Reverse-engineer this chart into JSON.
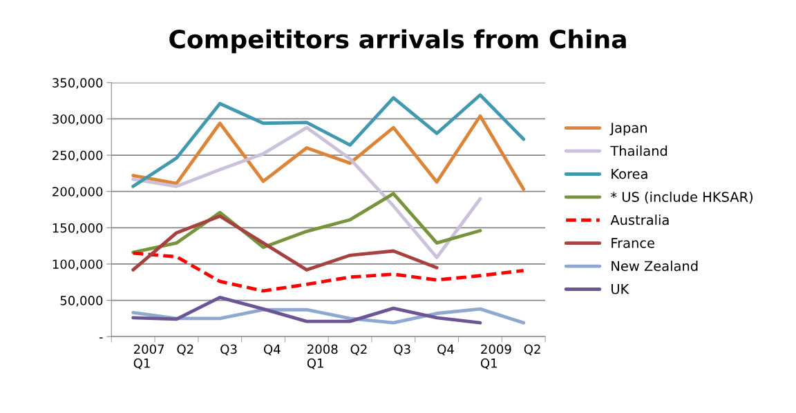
{
  "chart_data": {
    "type": "line",
    "title": "Compeititors arrivals from China",
    "categories": [
      "2007\nQ1",
      "Q2",
      "Q3",
      "Q4",
      "2008\nQ1",
      "Q2",
      "Q3",
      "Q4",
      "2009\nQ1",
      "Q2"
    ],
    "series": [
      {
        "name": "Japan",
        "color": "#dc8539",
        "values": [
          222000,
          211000,
          294000,
          214000,
          260000,
          239000,
          288000,
          213000,
          304000,
          203000
        ]
      },
      {
        "name": "Thailand",
        "color": "#ccc1da",
        "values": [
          217000,
          207000,
          230000,
          252000,
          288000,
          245000,
          180000,
          109000,
          190000,
          null
        ]
      },
      {
        "name": "Korea",
        "color": "#4198af",
        "values": [
          207000,
          246000,
          321000,
          294000,
          295000,
          264000,
          329000,
          280000,
          333000,
          272000
        ]
      },
      {
        "name": "* US (include HKSAR)",
        "color": "#77933c",
        "values": [
          116000,
          129000,
          171000,
          123000,
          145000,
          161000,
          197000,
          129000,
          146000,
          null
        ]
      },
      {
        "name": "Australia",
        "color": "#ff0000",
        "line_style": "dashed",
        "values": [
          115000,
          110000,
          76000,
          63000,
          72000,
          82000,
          86000,
          78000,
          84000,
          91000
        ]
      },
      {
        "name": "France",
        "color": "#a5423f",
        "values": [
          92000,
          143000,
          166000,
          129000,
          92000,
          112000,
          118000,
          95000,
          null,
          null
        ]
      },
      {
        "name": "New Zealand",
        "color": "#8ea8d0",
        "values": [
          33000,
          25000,
          25000,
          37000,
          37000,
          25000,
          19000,
          32000,
          38000,
          19000
        ]
      },
      {
        "name": "UK",
        "color": "#6b5594",
        "values": [
          26000,
          24000,
          54000,
          38000,
          21000,
          21000,
          39000,
          26000,
          19000,
          null
        ]
      }
    ],
    "ylim": [
      0,
      350000
    ],
    "yticks": [
      {
        "value": 0,
        "label": "-"
      },
      {
        "value": 50000,
        "label": "50,000"
      },
      {
        "value": 100000,
        "label": "100,000"
      },
      {
        "value": 150000,
        "label": "150,000"
      },
      {
        "value": 200000,
        "label": "200,000"
      },
      {
        "value": 250000,
        "label": "250,000"
      },
      {
        "value": 300000,
        "label": "300,000"
      },
      {
        "value": 350000,
        "label": "350,000"
      }
    ],
    "grid": "y",
    "legend": "right",
    "marker": "none",
    "line_style": "solid"
  }
}
